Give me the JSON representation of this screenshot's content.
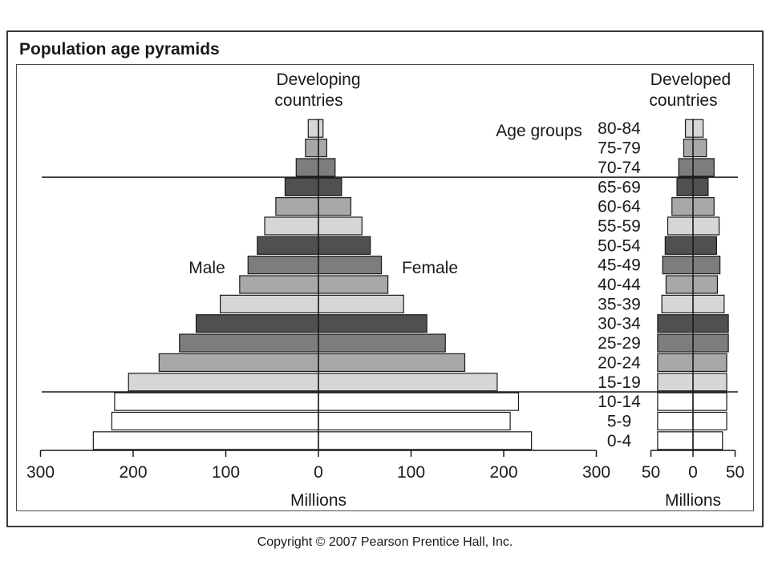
{
  "title": "Population age pyramids",
  "copyright": "Copyright © 2007 Pearson Prentice Hall, Inc.",
  "chart_data": [
    {
      "type": "bar",
      "subtype": "population-pyramid",
      "title": "Developing countries",
      "title_lines": [
        "Developing",
        "countries"
      ],
      "xlabel": "Millions",
      "ylabel": "Age groups",
      "xlim": [
        -300,
        300
      ],
      "xticks": [
        300,
        200,
        100,
        0,
        100,
        200,
        300
      ],
      "categories": [
        "0-4",
        "5-9",
        "10-14",
        "15-19",
        "20-24",
        "25-29",
        "30-34",
        "35-39",
        "40-44",
        "45-49",
        "50-54",
        "55-59",
        "60-64",
        "65-69",
        "70-74",
        "75-79",
        "80-84"
      ],
      "series": [
        {
          "name": "Male",
          "values": [
            243,
            223,
            220,
            205,
            172,
            150,
            132,
            106,
            85,
            76,
            66,
            58,
            46,
            36,
            24,
            14,
            11
          ]
        },
        {
          "name": "Female",
          "values": [
            230,
            207,
            216,
            193,
            158,
            137,
            117,
            92,
            75,
            68,
            56,
            47,
            35,
            25,
            18,
            9,
            5
          ]
        }
      ],
      "series_labels": {
        "male": "Male",
        "female": "Female"
      },
      "group_separators_above": [
        "10-14",
        "65-69"
      ],
      "grid": false
    },
    {
      "type": "bar",
      "subtype": "population-pyramid",
      "title": "Developed countries",
      "title_lines": [
        "Developed",
        "countries"
      ],
      "xlabel": "Millions",
      "xlim": [
        -50,
        50
      ],
      "xticks": [
        50,
        0,
        50
      ],
      "categories": [
        "0-4",
        "5-9",
        "10-14",
        "15-19",
        "20-24",
        "25-29",
        "30-34",
        "35-39",
        "40-44",
        "45-49",
        "50-54",
        "55-59",
        "60-64",
        "65-69",
        "70-74",
        "75-79",
        "80-84"
      ],
      "series": [
        {
          "name": "Male",
          "values": [
            42,
            42,
            42,
            42,
            42,
            42,
            42,
            37,
            32,
            36,
            33,
            30,
            25,
            19,
            17,
            11,
            9
          ]
        },
        {
          "name": "Female",
          "values": [
            35,
            40,
            40,
            40,
            40,
            42,
            42,
            37,
            29,
            32,
            28,
            31,
            25,
            18,
            25,
            16,
            12
          ]
        }
      ],
      "group_separators_above": [
        "10-14",
        "65-69"
      ],
      "grid": false
    }
  ],
  "colors": {
    "0-14": "#ffffff",
    "bands": [
      "#d6d6d6",
      "#a8a8a8",
      "#7d7d7d",
      "#505050"
    ],
    "stroke": "#1a1a1a"
  }
}
